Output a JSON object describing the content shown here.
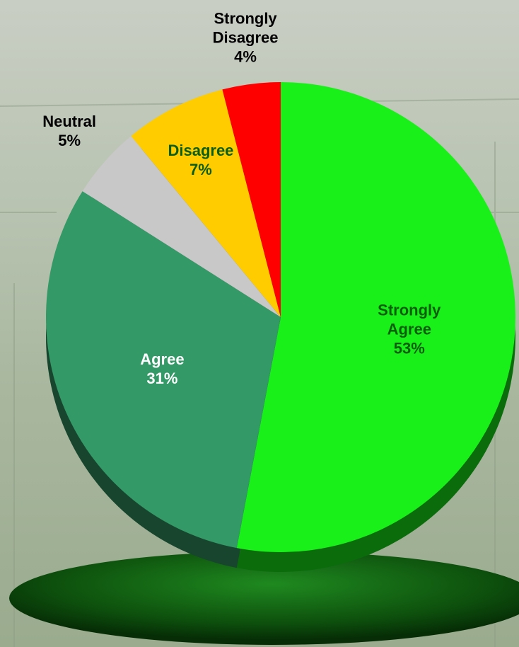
{
  "chart_data": {
    "type": "pie",
    "categories": [
      "Strongly Agree",
      "Agree",
      "Neutral",
      "Disagree",
      "Strongly Disagree"
    ],
    "values": [
      53,
      31,
      5,
      7,
      4
    ],
    "value_labels": [
      "53%",
      "31%",
      "5%",
      "7%",
      "4%"
    ],
    "colors": [
      "#19f019",
      "#339966",
      "#c8c8c8",
      "#ffcc00",
      "#ff0000"
    ],
    "label_colors": [
      "#0b5e0b",
      "#ffffff",
      "#000000",
      "#0b5e0b",
      "#000000"
    ]
  }
}
